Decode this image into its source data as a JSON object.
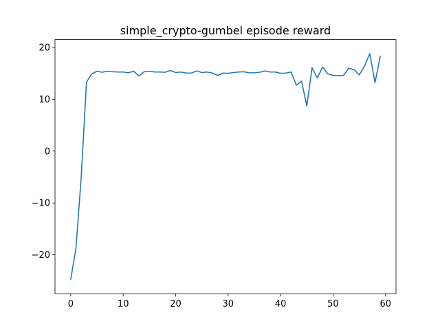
{
  "chart_data": {
    "type": "line",
    "title": "simple_crypto-gumbel episode reward",
    "xlabel": "",
    "ylabel": "",
    "xlim": [
      -3,
      62
    ],
    "ylim": [
      -27.5,
      21.5
    ],
    "xticks": [
      0,
      10,
      20,
      30,
      40,
      50,
      60
    ],
    "xtick_labels": [
      "0",
      "10",
      "20",
      "30",
      "40",
      "50",
      "60"
    ],
    "yticks": [
      -20,
      -10,
      0,
      10,
      20
    ],
    "ytick_labels": [
      "−20",
      "−10",
      "0",
      "10",
      "20"
    ],
    "grid": false,
    "legend": "none",
    "series": [
      {
        "color": "#1f77b4",
        "x": [
          0,
          1,
          2,
          3,
          4,
          5,
          6,
          7,
          8,
          9,
          10,
          11,
          12,
          13,
          14,
          15,
          16,
          17,
          18,
          19,
          20,
          21,
          22,
          23,
          24,
          25,
          26,
          27,
          28,
          29,
          30,
          31,
          32,
          33,
          34,
          35,
          36,
          37,
          38,
          39,
          40,
          41,
          42,
          43,
          44,
          45,
          46,
          47,
          48,
          49,
          50,
          51,
          52,
          53,
          54,
          55,
          56,
          57,
          58,
          59
        ],
        "y": [
          -24.7,
          -18.7,
          -5.0,
          13.3,
          14.9,
          15.4,
          15.2,
          15.4,
          15.3,
          15.25,
          15.25,
          15.1,
          15.4,
          14.5,
          15.3,
          15.4,
          15.25,
          15.25,
          15.2,
          15.55,
          15.15,
          15.25,
          15.05,
          15.05,
          15.45,
          15.15,
          15.25,
          15.05,
          14.6,
          15.05,
          15.0,
          15.15,
          15.25,
          15.3,
          15.1,
          15.1,
          15.2,
          15.45,
          15.25,
          15.25,
          15.0,
          15.05,
          15.25,
          12.7,
          13.5,
          8.7,
          16.1,
          14.1,
          16.2,
          14.9,
          14.6,
          14.55,
          14.6,
          16.0,
          15.7,
          14.7,
          16.4,
          18.8,
          13.2,
          18.3
        ]
      }
    ]
  }
}
